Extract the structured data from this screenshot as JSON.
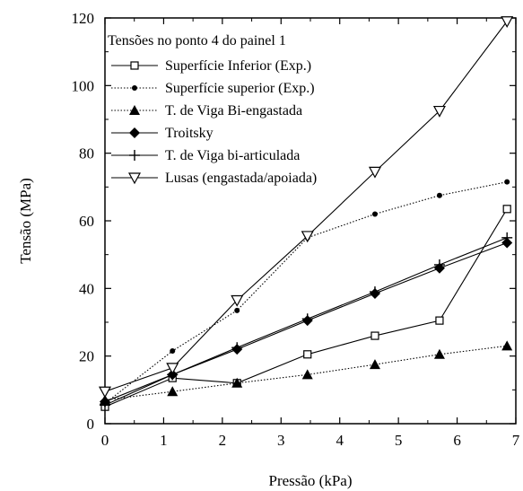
{
  "chart_data": {
    "type": "line",
    "title": "",
    "xlabel": "Pressão (kPa)",
    "ylabel": "Tensão (MPa)",
    "xlim": [
      0,
      7
    ],
    "ylim": [
      0,
      120
    ],
    "xticks": [
      0,
      1,
      2,
      3,
      4,
      5,
      6,
      7
    ],
    "yticks": [
      0,
      20,
      40,
      60,
      80,
      100,
      120
    ],
    "grid": false,
    "legend_title": "Tensões no ponto 4  do painel 1",
    "legend_position": "top-left",
    "series": [
      {
        "name": "Superfície Inferior (Exp.)",
        "marker": "open-square",
        "line": "solid",
        "x": [
          0,
          1.15,
          2.25,
          3.45,
          4.6,
          5.7,
          6.85
        ],
        "y": [
          5,
          13.5,
          12,
          20.5,
          26,
          30.5,
          63.5
        ]
      },
      {
        "name": "Superfície superior (Exp.)",
        "marker": "small-dot",
        "line": "dotted",
        "x": [
          0,
          1.15,
          2.25,
          3.45,
          4.6,
          5.7,
          6.85
        ],
        "y": [
          6,
          21.5,
          33.5,
          55,
          62,
          67.5,
          71.5
        ]
      },
      {
        "name": "T. de Viga Bi-engastada",
        "marker": "filled-triangle",
        "line": "dotted",
        "x": [
          0,
          1.15,
          2.25,
          3.45,
          4.6,
          5.7,
          6.85
        ],
        "y": [
          7,
          9.5,
          12,
          14.5,
          17.5,
          20.5,
          23
        ]
      },
      {
        "name": "Troitsky",
        "marker": "filled-diamond",
        "line": "solid",
        "x": [
          0,
          1.15,
          2.25,
          3.45,
          4.6,
          5.7,
          6.85
        ],
        "y": [
          6.5,
          14.5,
          22,
          30.5,
          38.5,
          46,
          53.5
        ]
      },
      {
        "name": "T. de Viga bi-articulada",
        "marker": "plus",
        "line": "solid",
        "x": [
          0,
          1.15,
          2.25,
          3.45,
          4.6,
          5.7,
          6.85
        ],
        "y": [
          5.5,
          14.5,
          22.5,
          31,
          39,
          47,
          55
        ]
      },
      {
        "name": "Lusas (engastada/apoiada)",
        "marker": "open-triangle-down",
        "line": "solid",
        "x": [
          0,
          1.15,
          2.25,
          3.45,
          4.6,
          5.7,
          6.85
        ],
        "y": [
          9.5,
          16.5,
          36.5,
          55.5,
          74.5,
          92.5,
          119
        ]
      }
    ]
  }
}
